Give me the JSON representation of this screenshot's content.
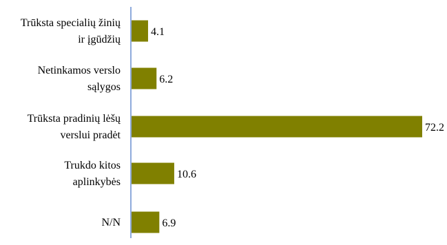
{
  "chart_data": {
    "type": "bar",
    "orientation": "horizontal",
    "categories": [
      [
        "Trūksta specialių žinių",
        "ir įgūdžių"
      ],
      [
        "Netinkamos verslo",
        "sąlygos"
      ],
      [
        "Trūksta pradinių lėšų",
        "verslui pradėt"
      ],
      [
        "Trukdo kitos",
        "aplinkybės"
      ],
      [
        "N/N"
      ]
    ],
    "values": [
      4.1,
      6.2,
      72.2,
      10.6,
      6.9
    ],
    "value_labels": [
      "4.1",
      "6.2",
      "72.2",
      "10.6",
      "6.9"
    ],
    "xlim": [
      0,
      72.2
    ],
    "grid": false,
    "bar_color": "#808000",
    "axis_color": "#4472c4"
  }
}
